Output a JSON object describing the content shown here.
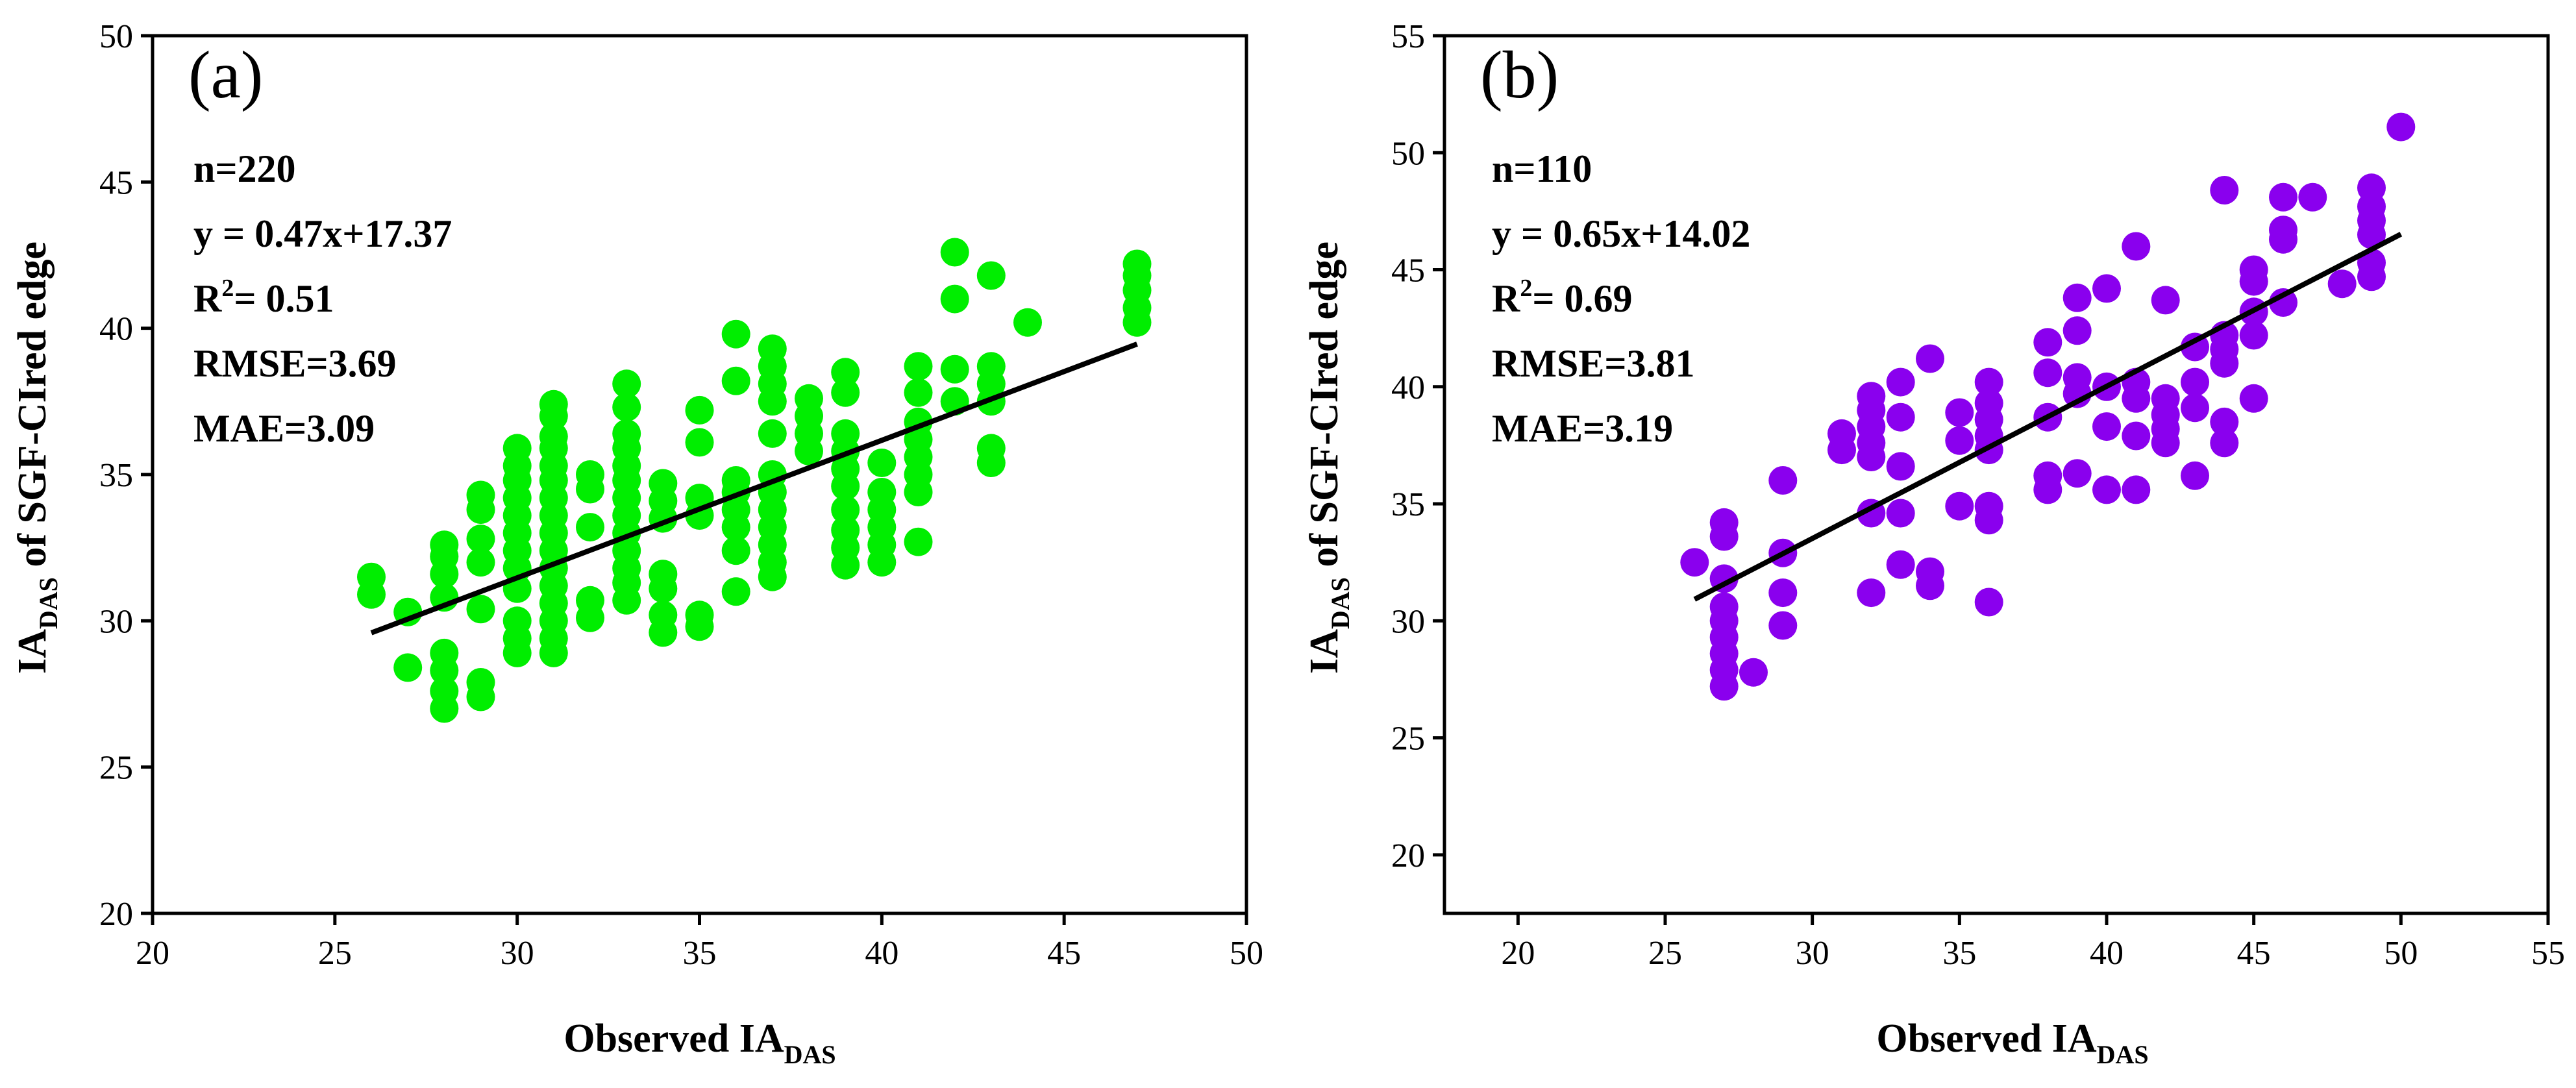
{
  "chart_data": [
    {
      "type": "scatter",
      "panel_label": "(a)",
      "xlabel": "Observed IA",
      "xlabel_sub": "DAS",
      "ylabel": "IA",
      "ylabel_sub": "DAS",
      "ylabel_rest": " of SGF-CIred edge",
      "xlim": [
        20,
        50
      ],
      "ylim": [
        20,
        50
      ],
      "xticks": [
        20,
        25,
        30,
        35,
        40,
        45,
        50
      ],
      "yticks": [
        20,
        25,
        30,
        35,
        40,
        45,
        50
      ],
      "marker_color": "#00ee00",
      "line_color": "#000000",
      "stats": {
        "n": "n=220",
        "equation": "y = 0.47x+17.37",
        "r2_prefix": "R",
        "r2_sup": "2",
        "r2_value": "= 0.51",
        "rmse": "RMSE=3.69",
        "mae": "MAE=3.09"
      },
      "fit": {
        "slope": 0.47,
        "intercept": 17.37,
        "x_range": [
          26,
          47
        ]
      },
      "points": [
        [
          26,
          30.9
        ],
        [
          26,
          31.5
        ],
        [
          27,
          28.4
        ],
        [
          27,
          30.3
        ],
        [
          28,
          27
        ],
        [
          28,
          27.6
        ],
        [
          28,
          28.3
        ],
        [
          28,
          28.9
        ],
        [
          28,
          30.8
        ],
        [
          28,
          31.6
        ],
        [
          28,
          32.2
        ],
        [
          28,
          32.6
        ],
        [
          29,
          27.4
        ],
        [
          29,
          27.9
        ],
        [
          29,
          30.4
        ],
        [
          29,
          32
        ],
        [
          29,
          32.8
        ],
        [
          29,
          33.8
        ],
        [
          29,
          34.3
        ],
        [
          30,
          28.9
        ],
        [
          30,
          29.4
        ],
        [
          30,
          30
        ],
        [
          30,
          31.1
        ],
        [
          30,
          31.8
        ],
        [
          30,
          32.4
        ],
        [
          30,
          33
        ],
        [
          30,
          33.6
        ],
        [
          30,
          34.2
        ],
        [
          30,
          34.8
        ],
        [
          30,
          35.3
        ],
        [
          30,
          35.9
        ],
        [
          31,
          28.9
        ],
        [
          31,
          29.4
        ],
        [
          31,
          30
        ],
        [
          31,
          30.6
        ],
        [
          31,
          31.2
        ],
        [
          31,
          31.8
        ],
        [
          31,
          32.4
        ],
        [
          31,
          33
        ],
        [
          31,
          33.6
        ],
        [
          31,
          34.2
        ],
        [
          31,
          34.8
        ],
        [
          31,
          35.3
        ],
        [
          31,
          35.9
        ],
        [
          31,
          36.3
        ],
        [
          31,
          37
        ],
        [
          31,
          37.4
        ],
        [
          32,
          30.1
        ],
        [
          32,
          30.7
        ],
        [
          32,
          33.2
        ],
        [
          32,
          34.5
        ],
        [
          32,
          35
        ],
        [
          33,
          30.7
        ],
        [
          33,
          31.3
        ],
        [
          33,
          31.8
        ],
        [
          33,
          32.4
        ],
        [
          33,
          33
        ],
        [
          33,
          33.6
        ],
        [
          33,
          34.2
        ],
        [
          33,
          34.8
        ],
        [
          33,
          35.3
        ],
        [
          33,
          35.9
        ],
        [
          33,
          36.4
        ],
        [
          33,
          37.3
        ],
        [
          33,
          38.1
        ],
        [
          34,
          29.6
        ],
        [
          34,
          30.2
        ],
        [
          34,
          31.1
        ],
        [
          34,
          31.6
        ],
        [
          34,
          33.5
        ],
        [
          34,
          34.1
        ],
        [
          34,
          34.7
        ],
        [
          35,
          29.8
        ],
        [
          35,
          30.2
        ],
        [
          35,
          33.6
        ],
        [
          35,
          34.2
        ],
        [
          35,
          36.1
        ],
        [
          35,
          37.2
        ],
        [
          36,
          31
        ],
        [
          36,
          32.4
        ],
        [
          36,
          33.2
        ],
        [
          36,
          33.8
        ],
        [
          36,
          34.4
        ],
        [
          36,
          34.8
        ],
        [
          36,
          38.2
        ],
        [
          36,
          39.8
        ],
        [
          37,
          31.5
        ],
        [
          37,
          32
        ],
        [
          37,
          32.6
        ],
        [
          37,
          33.2
        ],
        [
          37,
          33.8
        ],
        [
          37,
          34.4
        ],
        [
          37,
          35
        ],
        [
          37,
          36.4
        ],
        [
          37,
          37.5
        ],
        [
          37,
          38.1
        ],
        [
          37,
          38.7
        ],
        [
          37,
          39.3
        ],
        [
          38,
          35.8
        ],
        [
          38,
          36.4
        ],
        [
          38,
          37
        ],
        [
          38,
          37.6
        ],
        [
          39,
          31.9
        ],
        [
          39,
          32.5
        ],
        [
          39,
          33.1
        ],
        [
          39,
          33.8
        ],
        [
          39,
          34.6
        ],
        [
          39,
          35.2
        ],
        [
          39,
          35.8
        ],
        [
          39,
          36.4
        ],
        [
          39,
          37.8
        ],
        [
          39,
          38.5
        ],
        [
          40,
          32
        ],
        [
          40,
          32.6
        ],
        [
          40,
          33.2
        ],
        [
          40,
          33.8
        ],
        [
          40,
          34.4
        ],
        [
          40,
          35.4
        ],
        [
          41,
          32.7
        ],
        [
          41,
          34.4
        ],
        [
          41,
          35
        ],
        [
          41,
          35.6
        ],
        [
          41,
          36.2
        ],
        [
          41,
          36.8
        ],
        [
          41,
          37.8
        ],
        [
          41,
          38.7
        ],
        [
          42,
          37.5
        ],
        [
          42,
          38.6
        ],
        [
          42,
          41
        ],
        [
          42,
          42.6
        ],
        [
          43,
          35.4
        ],
        [
          43,
          35.9
        ],
        [
          43,
          37.5
        ],
        [
          43,
          38.1
        ],
        [
          43,
          38.7
        ],
        [
          43,
          41.8
        ],
        [
          44,
          40.2
        ],
        [
          47,
          40.2
        ],
        [
          47,
          40.7
        ],
        [
          47,
          41.3
        ],
        [
          47,
          41.8
        ],
        [
          47,
          42.2
        ]
      ]
    },
    {
      "type": "scatter",
      "panel_label": "(b)",
      "xlabel": "Observed IA",
      "xlabel_sub": "DAS",
      "ylabel": "IA",
      "ylabel_sub": "DAS",
      "ylabel_rest": " of SGF-CIred edge",
      "xlim": [
        17.5,
        55
      ],
      "ylim": [
        17.5,
        55
      ],
      "xticks": [
        20,
        25,
        30,
        35,
        40,
        45,
        50,
        55
      ],
      "yticks": [
        20,
        25,
        30,
        35,
        40,
        45,
        50,
        55
      ],
      "marker_color": "#8a00ee",
      "line_color": "#000000",
      "stats": {
        "n": "n=110",
        "equation": "y = 0.65x+14.02",
        "r2_prefix": "R",
        "r2_sup": "2",
        "r2_value": "= 0.69",
        "rmse": "RMSE=3.81",
        "mae": "MAE=3.19"
      },
      "fit": {
        "slope": 0.65,
        "intercept": 14.02,
        "x_range": [
          26,
          50
        ]
      },
      "points": [
        [
          26,
          32.5
        ],
        [
          27,
          27.2
        ],
        [
          27,
          27.9
        ],
        [
          27,
          28.6
        ],
        [
          27,
          29.3
        ],
        [
          27,
          30
        ],
        [
          27,
          30.6
        ],
        [
          27,
          31.8
        ],
        [
          27,
          33.6
        ],
        [
          27,
          34.2
        ],
        [
          28,
          27.8
        ],
        [
          29,
          29.8
        ],
        [
          29,
          31.2
        ],
        [
          29,
          32.9
        ],
        [
          29,
          36
        ],
        [
          31,
          37.3
        ],
        [
          31,
          38
        ],
        [
          32,
          31.2
        ],
        [
          32,
          34.6
        ],
        [
          32,
          37
        ],
        [
          32,
          37.6
        ],
        [
          32,
          38.3
        ],
        [
          32,
          39
        ],
        [
          32,
          39.6
        ],
        [
          33,
          32.4
        ],
        [
          33,
          34.6
        ],
        [
          33,
          36.6
        ],
        [
          33,
          38.7
        ],
        [
          33,
          40.2
        ],
        [
          34,
          31.5
        ],
        [
          34,
          32.1
        ],
        [
          34,
          41.2
        ],
        [
          35,
          34.9
        ],
        [
          35,
          37.7
        ],
        [
          35,
          38.9
        ],
        [
          36,
          30.8
        ],
        [
          36,
          34.3
        ],
        [
          36,
          34.9
        ],
        [
          36,
          37.3
        ],
        [
          36,
          37.9
        ],
        [
          36,
          38.6
        ],
        [
          36,
          39.3
        ],
        [
          36,
          40.2
        ],
        [
          38,
          35.6
        ],
        [
          38,
          36.2
        ],
        [
          38,
          38.7
        ],
        [
          38,
          40.6
        ],
        [
          38,
          41.9
        ],
        [
          39,
          36.3
        ],
        [
          39,
          39.7
        ],
        [
          39,
          40.4
        ],
        [
          39,
          42.4
        ],
        [
          39,
          43.8
        ],
        [
          40,
          35.6
        ],
        [
          40,
          38.3
        ],
        [
          40,
          40
        ],
        [
          40,
          44.2
        ],
        [
          41,
          35.6
        ],
        [
          41,
          37.9
        ],
        [
          41,
          39.5
        ],
        [
          41,
          40.2
        ],
        [
          41,
          46
        ],
        [
          42,
          37.6
        ],
        [
          42,
          38.2
        ],
        [
          42,
          38.8
        ],
        [
          42,
          39.5
        ],
        [
          42,
          43.7
        ],
        [
          43,
          36.2
        ],
        [
          43,
          39.1
        ],
        [
          43,
          40.2
        ],
        [
          43,
          41.7
        ],
        [
          44,
          37.6
        ],
        [
          44,
          38.5
        ],
        [
          44,
          41
        ],
        [
          44,
          41.6
        ],
        [
          44,
          42.2
        ],
        [
          44,
          48.4
        ],
        [
          45,
          39.5
        ],
        [
          45,
          42.2
        ],
        [
          45,
          43.2
        ],
        [
          45,
          44.5
        ],
        [
          45,
          45
        ],
        [
          46,
          43.6
        ],
        [
          46,
          46.3
        ],
        [
          46,
          46.7
        ],
        [
          46,
          48.1
        ],
        [
          47,
          48.1
        ],
        [
          48,
          44.4
        ],
        [
          49,
          44.7
        ],
        [
          49,
          45.3
        ],
        [
          49,
          46.5
        ],
        [
          49,
          47.1
        ],
        [
          49,
          47.7
        ],
        [
          49,
          48.5
        ],
        [
          50,
          51.1
        ]
      ]
    }
  ]
}
